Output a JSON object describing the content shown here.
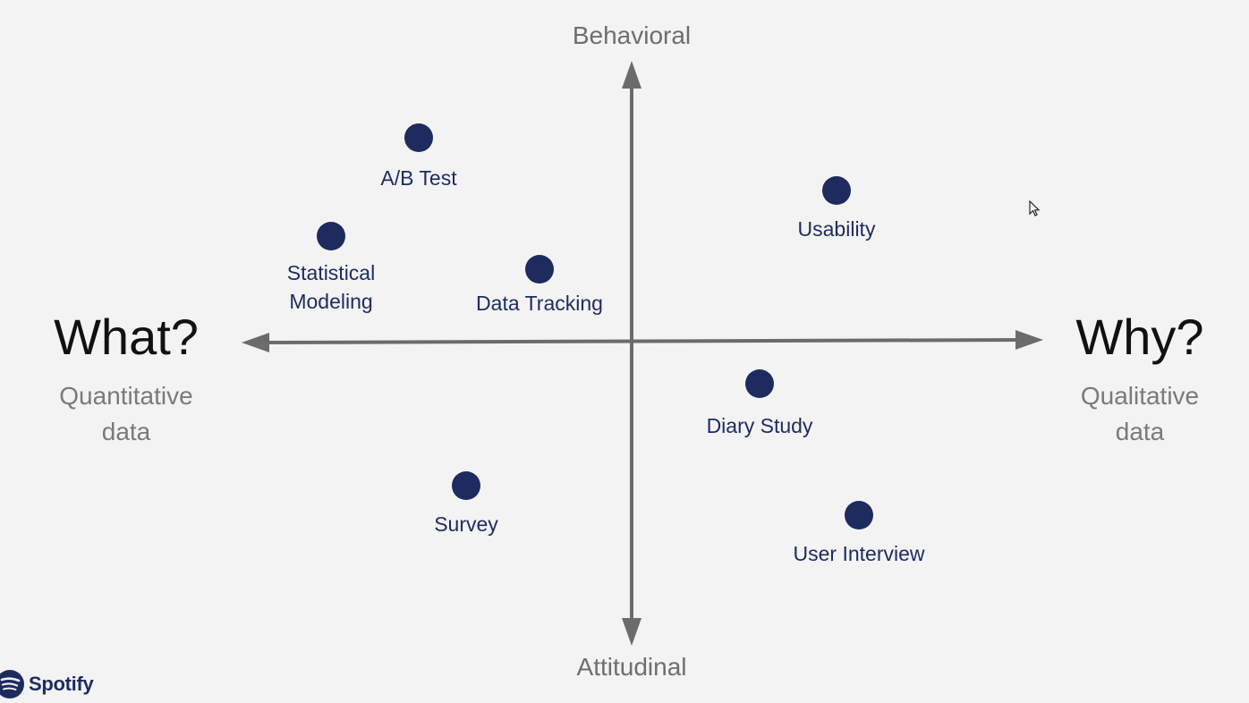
{
  "axes": {
    "top": "Behavioral",
    "bottom": "Attitudinal",
    "left": {
      "title": "What?",
      "subtitle": "Quantitative\ndata"
    },
    "right": {
      "title": "Why?",
      "subtitle": "Qualitative\ndata"
    }
  },
  "methods": [
    {
      "label": "A/B Test"
    },
    {
      "label": "Statistical\nModeling"
    },
    {
      "label": "Data Tracking"
    },
    {
      "label": "Usability"
    },
    {
      "label": "Diary Study"
    },
    {
      "label": "Survey"
    },
    {
      "label": "User Interview"
    }
  ],
  "colors": {
    "dot": "#1d2b5e",
    "axis": "#6b6b6b",
    "background": "#f3f3f4"
  },
  "brand": {
    "name": "Spotify",
    "icon": "spotify-logo-icon"
  }
}
